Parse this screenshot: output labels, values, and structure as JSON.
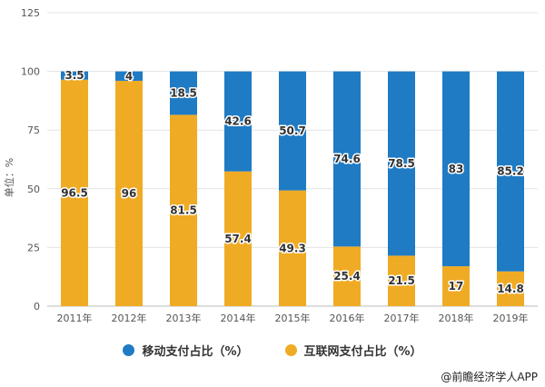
{
  "chart_data": {
    "type": "bar",
    "stacked": true,
    "categories": [
      "2011年",
      "2012年",
      "2013年",
      "2014年",
      "2015年",
      "2016年",
      "2017年",
      "2018年",
      "2019年"
    ],
    "series": [
      {
        "name": "互联网支付占比（%）",
        "values": [
          96.5,
          96,
          81.5,
          57.4,
          49.3,
          25.4,
          21.5,
          17,
          14.8
        ],
        "color": "#f0ab25"
      },
      {
        "name": "移动支付占比（%）",
        "values": [
          3.5,
          4,
          18.5,
          42.6,
          50.7,
          74.6,
          78.5,
          83,
          85.2
        ],
        "color": "#1f7bc4"
      }
    ],
    "ylabel": "单位：%",
    "ylim": [
      0,
      125
    ],
    "yticks": [
      0,
      25,
      50,
      75,
      100,
      125
    ],
    "grid": true,
    "legend_position": "bottom",
    "legend_order": [
      "移动支付占比（%）",
      "互联网支付占比（%）"
    ]
  },
  "source": "@前瞻经济学人APP"
}
